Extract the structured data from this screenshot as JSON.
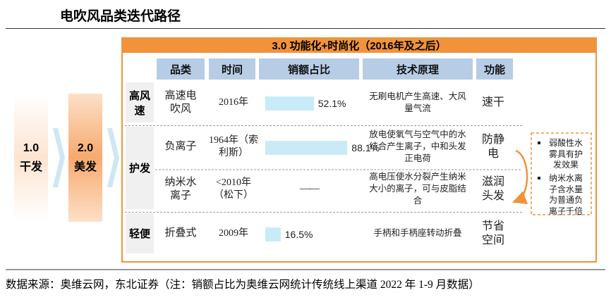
{
  "header": {
    "title": "电吹风品类迭代路径"
  },
  "stages": [
    {
      "version": "1.0",
      "name": "干发"
    },
    {
      "version": "2.0",
      "name": "美发"
    }
  ],
  "panel": {
    "title": "3.0 功能化+时尚化（2016年及之后）",
    "columns": [
      "品类",
      "时间",
      "销额占比",
      "技术原理",
      "功能"
    ],
    "groups": [
      {
        "name": "高风速",
        "rows": [
          {
            "category": "高速电吹风",
            "time": "2016年",
            "share": 52.1,
            "share_label": "52.1%",
            "principle": "无刷电机产生高速、大风量气流",
            "function": "速干"
          }
        ]
      },
      {
        "name": "护发",
        "rows": [
          {
            "category": "负离子",
            "time": "1964年（索利斯）",
            "share": 88.1,
            "share_label": "88.1%",
            "principle": "放电使氧气与空气中的水结合产生离子，中和头发正电荷",
            "function": "防静电"
          },
          {
            "category": "纳米水离子",
            "time": "<2010年（松下）",
            "share": null,
            "share_label": "——",
            "principle": "高电压使水分裂产生纳米大小的离子，可与皮脂结合",
            "function": "滋润头发"
          }
        ]
      },
      {
        "name": "轻便",
        "rows": [
          {
            "category": "折叠式",
            "time": "2009年",
            "share": 16.5,
            "share_label": "16.5%",
            "principle": "手柄和手柄座转动折叠",
            "function": "节省空间"
          }
        ]
      }
    ],
    "notes": [
      "弱酸性水雾具有护发效果",
      "纳米水离子含水量为普通负离子千倍"
    ]
  },
  "footer": {
    "source": "数据来源：奥维云网，东北证券（注：销额占比为奥维云网统计传统线上渠道 2022 年 1-9 月数据）"
  }
}
